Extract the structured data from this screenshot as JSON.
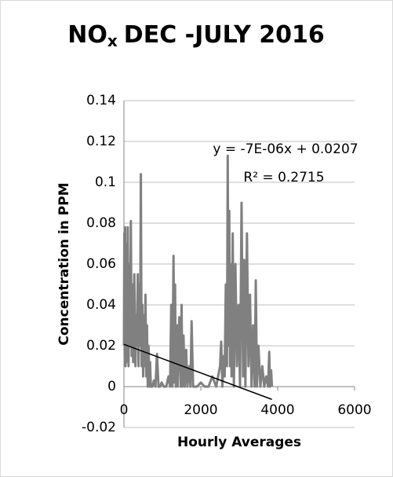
{
  "chart_data": {
    "type": "line",
    "title": {
      "main": "NO",
      "sub": "x",
      "rest": "DEC -JULY 2016"
    },
    "x_label": "Hourly Averages",
    "y_label": "Concentration in PPM",
    "annotations": [
      "y = -7E-06x + 0.0207",
      "R² = 0.2715"
    ],
    "xlim": [
      0,
      6000
    ],
    "xticks": [
      0,
      2000,
      4000,
      6000
    ],
    "ylim": [
      -0.02,
      0.14
    ],
    "yticks": [
      -0.02,
      0,
      0.02,
      0.04,
      0.06,
      0.08,
      0.1,
      0.12,
      0.14
    ],
    "grid": true,
    "x": [
      0,
      10,
      20,
      30,
      40,
      60,
      80,
      100,
      120,
      140,
      160,
      180,
      200,
      220,
      240,
      270,
      300,
      320,
      340,
      360,
      380,
      400,
      420,
      440,
      460,
      480,
      500,
      520,
      540,
      560,
      580,
      600,
      620,
      640,
      660,
      680,
      700,
      740,
      780,
      820,
      860,
      900,
      940,
      980,
      1040,
      1100,
      1160,
      1200,
      1230,
      1260,
      1290,
      1310,
      1330,
      1350,
      1380,
      1400,
      1440,
      1480,
      1500,
      1520,
      1550,
      1580,
      1620,
      1650,
      1700,
      1730,
      1760,
      1800,
      1900,
      2000,
      2100,
      2200,
      2300,
      2400,
      2500,
      2530,
      2560,
      2600,
      2620,
      2650,
      2680,
      2700,
      2720,
      2740,
      2760,
      2780,
      2800,
      2830,
      2860,
      2900,
      2940,
      2980,
      3020,
      3060,
      3100,
      3130,
      3160,
      3200,
      3240,
      3280,
      3320,
      3360,
      3400,
      3430,
      3460,
      3500,
      3550,
      3600,
      3650,
      3700,
      3750,
      3780,
      3800,
      3830,
      3850
    ],
    "series": [
      {
        "color": "#808080",
        "values": [
          0.02,
          0.075,
          0.015,
          0.078,
          0.01,
          0.07,
          0.012,
          0.078,
          0.01,
          0.06,
          0.02,
          0.081,
          0.015,
          0.05,
          0.012,
          0.055,
          0.01,
          0.035,
          0.02,
          0.055,
          0.01,
          0.05,
          0.02,
          0.104,
          0.01,
          0.04,
          0.005,
          0.035,
          0.01,
          0.045,
          0.005,
          0.03,
          0,
          0.02,
          0,
          0.012,
          0,
          0,
          0.003,
          0,
          0.016,
          0,
          0,
          0.002,
          0,
          0,
          0.005,
          0,
          0.04,
          0,
          0.064,
          0.002,
          0.05,
          0,
          0.03,
          0,
          0.034,
          0,
          0.04,
          0,
          0.025,
          0,
          0.018,
          0,
          0.01,
          0,
          0.032,
          0,
          0,
          0.002,
          0,
          0,
          0.005,
          0,
          0.01,
          0.022,
          0,
          0.015,
          0.005,
          0.05,
          0.01,
          0.113,
          0.02,
          0.086,
          0.01,
          0.06,
          0.005,
          0.075,
          0,
          0.06,
          0.01,
          0.04,
          0,
          0.09,
          0.005,
          0.062,
          0,
          0.075,
          0.01,
          0.045,
          0,
          0.03,
          0,
          0.052,
          0,
          0.02,
          0,
          0.01,
          0,
          0.005,
          0,
          0.017,
          0,
          0.008,
          0
        ]
      }
    ],
    "trendline": {
      "color": "#000000",
      "x": [
        0,
        3850
      ],
      "values": [
        0.0207,
        -0.00625
      ]
    }
  }
}
